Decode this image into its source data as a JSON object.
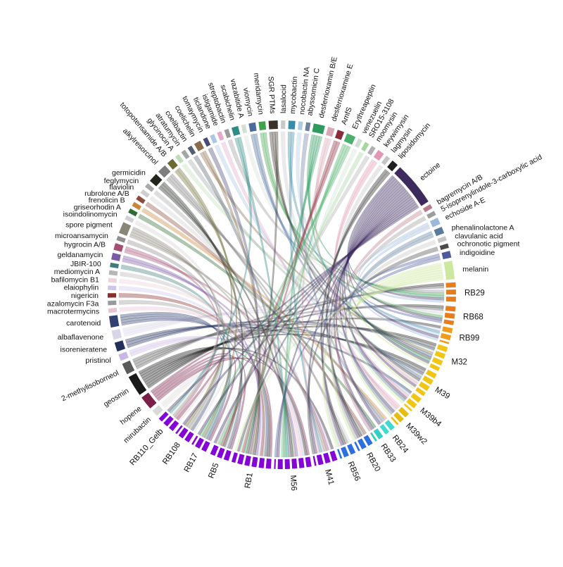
{
  "chart_data": {
    "type": "chord",
    "title": "",
    "background": "#FFFFFF",
    "legend_position": "none",
    "description_labels": {
      "strain_group_colors": {
        "orange": "#E87D1E",
        "yellow": "#F0C514",
        "cyan": "#3FD9CF",
        "blue": "#2E6FE0",
        "purple": "#8405D6"
      }
    },
    "strains": [
      {
        "name": "RB29",
        "color": "#E87D1E"
      },
      {
        "name": "RB68",
        "color": "#E87D1E"
      },
      {
        "name": "RB99",
        "color": "#F09B1A"
      },
      {
        "name": "M32",
        "color": "#F0C514"
      },
      {
        "name": "M39",
        "color": "#F0C514"
      },
      {
        "name": "M39b4",
        "color": "#F0C514"
      },
      {
        "name": "M39w2",
        "color": "#E8BC10"
      },
      {
        "name": "RB24",
        "color": "#3FD9CF"
      },
      {
        "name": "RB33",
        "color": "#35CFC5"
      },
      {
        "name": "RB20",
        "color": "#2E6FE0"
      },
      {
        "name": "RB56",
        "color": "#2E6FE0"
      },
      {
        "name": "M41",
        "color": "#8405D6"
      },
      {
        "name": "M56",
        "color": "#8405D6"
      },
      {
        "name": "RB1",
        "color": "#8405D6"
      },
      {
        "name": "RB5",
        "color": "#8405D6"
      },
      {
        "name": "RB17",
        "color": "#8405D6"
      },
      {
        "name": "RB108",
        "color": "#8405D6"
      },
      {
        "name": "RB110_Gelb",
        "color": "#8405D6"
      }
    ],
    "compounds": [
      {
        "name": "mirubactin",
        "color": "#D9D9D9"
      },
      {
        "name": "hopene",
        "color": "#7A2048"
      },
      {
        "name": "geosmin",
        "color": "#1A1A1A"
      },
      {
        "name": "2-methylisoborneol",
        "color": "#5A5A5A"
      },
      {
        "name": "pristinol",
        "color": "#C7B9E2"
      },
      {
        "name": "isorenieratene",
        "color": "#23305C"
      },
      {
        "name": "albaflavenone",
        "color": "#D8D5E6"
      },
      {
        "name": "carotenoid",
        "color": "#31406E"
      },
      {
        "name": "macrotermycins",
        "color": "#E9C2D4"
      },
      {
        "name": "azalomycin F3a",
        "color": "#9A9A9A"
      },
      {
        "name": "nigericin",
        "color": "#8C2B2B"
      },
      {
        "name": "elaiophylin",
        "color": "#CFC4EC"
      },
      {
        "name": "bafilomycin B1",
        "color": "#EDD3DA"
      },
      {
        "name": "mediomycin A",
        "color": "#B5B5B5"
      },
      {
        "name": "JBIR-100",
        "color": "#3E7C7C"
      },
      {
        "name": "geldanamycin",
        "color": "#7B5AA6"
      },
      {
        "name": "hygrocin A/B",
        "color": "#A44E73"
      },
      {
        "name": "microansamycin",
        "color": "#8F8F8F"
      },
      {
        "name": "spore pigment",
        "color": "#8A8578"
      },
      {
        "name": "isoindolinomycin",
        "color": "#D2D2D2"
      },
      {
        "name": "griseorhodin A",
        "color": "#2E6B33"
      },
      {
        "name": "frenolicin B",
        "color": "#C8863A"
      },
      {
        "name": "rubrolone A/B",
        "color": "#8C4A3A"
      },
      {
        "name": "flaviolin",
        "color": "#CFCFCF"
      },
      {
        "name": "feglymycin",
        "color": "#A9A9A9"
      },
      {
        "name": "germicidin",
        "color": "#20261E"
      },
      {
        "name": "alkylresorcinol",
        "color": "#7D7D7D"
      },
      {
        "name": "totopotensamide A/B",
        "color": "#6B6B33"
      },
      {
        "name": "glycinocin A",
        "color": "#BFDDB8"
      },
      {
        "name": "atratumycin",
        "color": "#9FA8A3"
      },
      {
        "name": "coelibactin",
        "color": "#55606E"
      },
      {
        "name": "coelichelin",
        "color": "#8A6B4A"
      },
      {
        "name": "tomaymycin",
        "color": "#4A4A73"
      },
      {
        "name": "ticlandone",
        "color": "#A9C6E3"
      },
      {
        "name": "istigamide",
        "color": "#E3A9C6"
      },
      {
        "name": "streptobactin",
        "color": "#9B9B9B"
      },
      {
        "name": "scabichelin",
        "color": "#2F8C84"
      },
      {
        "name": "vazabitide A",
        "color": "#D5E0D5"
      },
      {
        "name": "viomycin",
        "color": "#4A6B9B"
      },
      {
        "name": "meridamycin",
        "color": "#3FA34D"
      },
      {
        "name": "SGR PTMs",
        "color": "#3A312A"
      },
      {
        "name": "lasalocid",
        "color": "#C9C9C9"
      },
      {
        "name": "mycobactin",
        "color": "#3A8BA8"
      },
      {
        "name": "nocobactin NA",
        "color": "#AECBE0"
      },
      {
        "name": "abyssomicin C",
        "color": "#6E7FA0"
      },
      {
        "name": "desferrioxamin B/E",
        "color": "#2E9B5E"
      },
      {
        "name": "desferrioxamine E",
        "color": "#D8A9B5"
      },
      {
        "name": "AmfS",
        "color": "#8C2B3A"
      },
      {
        "name": "Erythreapeptin",
        "color": "#4BB06B"
      },
      {
        "name": "venezuelin",
        "color": "#CFE0CF"
      },
      {
        "name": "SRO15-3108",
        "color": "#A5D6A0"
      },
      {
        "name": "moomysin",
        "color": "#B0B0B0"
      },
      {
        "name": "keywimysin",
        "color": "#E098B4"
      },
      {
        "name": "lagmysin",
        "color": "#C4C4C4"
      },
      {
        "name": "liposidomycin",
        "color": "#1F1F1F"
      },
      {
        "name": "ectoine",
        "color": "#3D2B5E"
      },
      {
        "name": "bagremycin A/B",
        "color": "#B87B8B"
      },
      {
        "name": "5-isoprenylindole-3-carboxylic acid",
        "color": "#9C9C9C"
      },
      {
        "name": "echoside A-E",
        "color": "#9BB8D8"
      },
      {
        "name": "phenalinolactone A",
        "color": "#5B7B9B"
      },
      {
        "name": "clavulanic acid",
        "color": "#C6C6C6"
      },
      {
        "name": "ochronotic pigment",
        "color": "#4B4B4B"
      },
      {
        "name": "indigoidine",
        "color": "#4B5B9B"
      },
      {
        "name": "melanin",
        "color": "#CDE79E"
      }
    ],
    "links": [
      {
        "compound": "mirubactin",
        "strains": [
          "RB108",
          "RB110_Gelb"
        ]
      },
      {
        "compound": "hopene",
        "strains": [
          "M56",
          "RB1",
          "RB5",
          "RB17",
          "RB110_Gelb"
        ]
      },
      {
        "compound": "geosmin",
        "strains": [
          "RB29",
          "RB68",
          "RB99",
          "M32",
          "M39",
          "M41",
          "M56",
          "RB1"
        ]
      },
      {
        "compound": "2-methylisoborneol",
        "strains": [
          "RB29",
          "RB68",
          "M32",
          "M39"
        ]
      },
      {
        "compound": "pristinol",
        "strains": [
          "M41",
          "M56"
        ]
      },
      {
        "compound": "isorenieratene",
        "strains": [
          "M32",
          "M39",
          "M39b4"
        ]
      },
      {
        "compound": "albaflavenone",
        "strains": [
          "RB29",
          "RB68",
          "RB99"
        ]
      },
      {
        "compound": "carotenoid",
        "strains": [
          "RB1",
          "RB5",
          "RB17",
          "RB108"
        ]
      },
      {
        "compound": "macrotermycins",
        "strains": [
          "M56"
        ]
      },
      {
        "compound": "azalomycin F3a",
        "strains": [
          "RB1"
        ]
      },
      {
        "compound": "nigericin",
        "strains": [
          "RB1"
        ]
      },
      {
        "compound": "elaiophylin",
        "strains": [
          "RB1"
        ]
      },
      {
        "compound": "bafilomycin B1",
        "strains": [
          "M56"
        ]
      },
      {
        "compound": "mediomycin A",
        "strains": [
          "RB5"
        ]
      },
      {
        "compound": "JBIR-100",
        "strains": [
          "RB17"
        ]
      },
      {
        "compound": "geldanamycin",
        "strains": [
          "M56",
          "RB1"
        ]
      },
      {
        "compound": "hygrocin A/B",
        "strains": [
          "M41",
          "RB110_Gelb"
        ]
      },
      {
        "compound": "microansamycin",
        "strains": [
          "RB108"
        ]
      },
      {
        "compound": "spore pigment",
        "strains": [
          "M41",
          "M56",
          "RB108",
          "RB110_Gelb"
        ]
      },
      {
        "compound": "isoindolinomycin",
        "strains": [
          "RB110_Gelb"
        ]
      },
      {
        "compound": "griseorhodin A",
        "strains": [
          "RB33"
        ]
      },
      {
        "compound": "frenolicin B",
        "strains": [
          "RB24"
        ]
      },
      {
        "compound": "rubrolone A/B",
        "strains": [
          "RB20"
        ]
      },
      {
        "compound": "flaviolin",
        "strains": [
          "RB56"
        ]
      },
      {
        "compound": "feglymycin",
        "strains": [
          "M41"
        ]
      },
      {
        "compound": "germicidin",
        "strains": [
          "M56",
          "RB1",
          "RB5"
        ]
      },
      {
        "compound": "alkylresorcinol",
        "strains": [
          "RB24",
          "RB20",
          "RB56"
        ]
      },
      {
        "compound": "totopotensamide A/B",
        "strains": [
          "RB17",
          "RB108"
        ]
      },
      {
        "compound": "glycinocin A",
        "strains": [
          "M32"
        ]
      },
      {
        "compound": "atratumycin",
        "strains": [
          "M39"
        ]
      },
      {
        "compound": "coelibactin",
        "strains": [
          "M56"
        ]
      },
      {
        "compound": "coelichelin",
        "strains": [
          "M32",
          "RB1"
        ]
      },
      {
        "compound": "tomaymycin",
        "strains": [
          "RB1"
        ]
      },
      {
        "compound": "ticlandone",
        "strains": [
          "M39b4"
        ]
      },
      {
        "compound": "istigamide",
        "strains": [
          "M39w2"
        ]
      },
      {
        "compound": "streptobactin",
        "strains": [
          "RB29"
        ]
      },
      {
        "compound": "scabichelin",
        "strains": [
          "M56",
          "RB110_Gelb"
        ]
      },
      {
        "compound": "vazabitide A",
        "strains": [
          "RB68"
        ]
      },
      {
        "compound": "viomycin",
        "strains": [
          "M32",
          "M39"
        ]
      },
      {
        "compound": "meridamycin",
        "strains": [
          "RB29",
          "RB68"
        ]
      },
      {
        "compound": "SGR PTMs",
        "strains": [
          "M32",
          "M39",
          "RB1"
        ]
      },
      {
        "compound": "lasalocid",
        "strains": [
          "M39"
        ]
      },
      {
        "compound": "mycobactin",
        "strains": [
          "RB99",
          "M41"
        ]
      },
      {
        "compound": "nocobactin NA",
        "strains": [
          "RB99"
        ]
      },
      {
        "compound": "abyssomicin C",
        "strains": [
          "RB24"
        ]
      },
      {
        "compound": "desferrioxamin B/E",
        "strains": [
          "RB29",
          "M32",
          "M56",
          "RB1"
        ]
      },
      {
        "compound": "desferrioxamine E",
        "strains": [
          "M39",
          "M41"
        ]
      },
      {
        "compound": "AmfS",
        "strains": [
          "RB1",
          "RB5"
        ]
      },
      {
        "compound": "Erythreapeptin",
        "strains": [
          "M56",
          "RB5",
          "RB17"
        ]
      },
      {
        "compound": "venezuelin",
        "strains": [
          "M56"
        ]
      },
      {
        "compound": "SRO15-3108",
        "strains": [
          "RB1"
        ]
      },
      {
        "compound": "moomysin",
        "strains": [
          "RB5"
        ]
      },
      {
        "compound": "keywimysin",
        "strains": [
          "M39b4",
          "M39w2"
        ]
      },
      {
        "compound": "lagmysin",
        "strains": [
          "M39w2"
        ]
      },
      {
        "compound": "liposidomycin",
        "strains": [
          "RB20",
          "RB56"
        ]
      },
      {
        "compound": "ectoine",
        "strains": [
          "RB29",
          "RB68",
          "RB99",
          "M32",
          "M39",
          "M39b4",
          "M39w2",
          "RB24",
          "RB33",
          "RB20",
          "RB56",
          "M41",
          "M56",
          "RB1",
          "RB5",
          "RB17",
          "RB108",
          "RB110_Gelb"
        ]
      },
      {
        "compound": "bagremycin A/B",
        "strains": [
          "RB33"
        ]
      },
      {
        "compound": "5-isoprenylindole-3-carboxylic acid",
        "strains": [
          "RB20"
        ]
      },
      {
        "compound": "echoside A-E",
        "strains": [
          "RB29",
          "RB99"
        ]
      },
      {
        "compound": "phenalinolactone A",
        "strains": [
          "M39b4",
          "M39w2"
        ]
      },
      {
        "compound": "clavulanic acid",
        "strains": [
          "RB56"
        ]
      },
      {
        "compound": "ochronotic pigment",
        "strains": [
          "M41"
        ]
      },
      {
        "compound": "indigoidine",
        "strains": [
          "RB68",
          "M56"
        ]
      },
      {
        "compound": "melanin",
        "strains": [
          "M32",
          "M39",
          "M39b4",
          "M39w2",
          "RB20",
          "RB56",
          "RB1"
        ]
      }
    ]
  }
}
